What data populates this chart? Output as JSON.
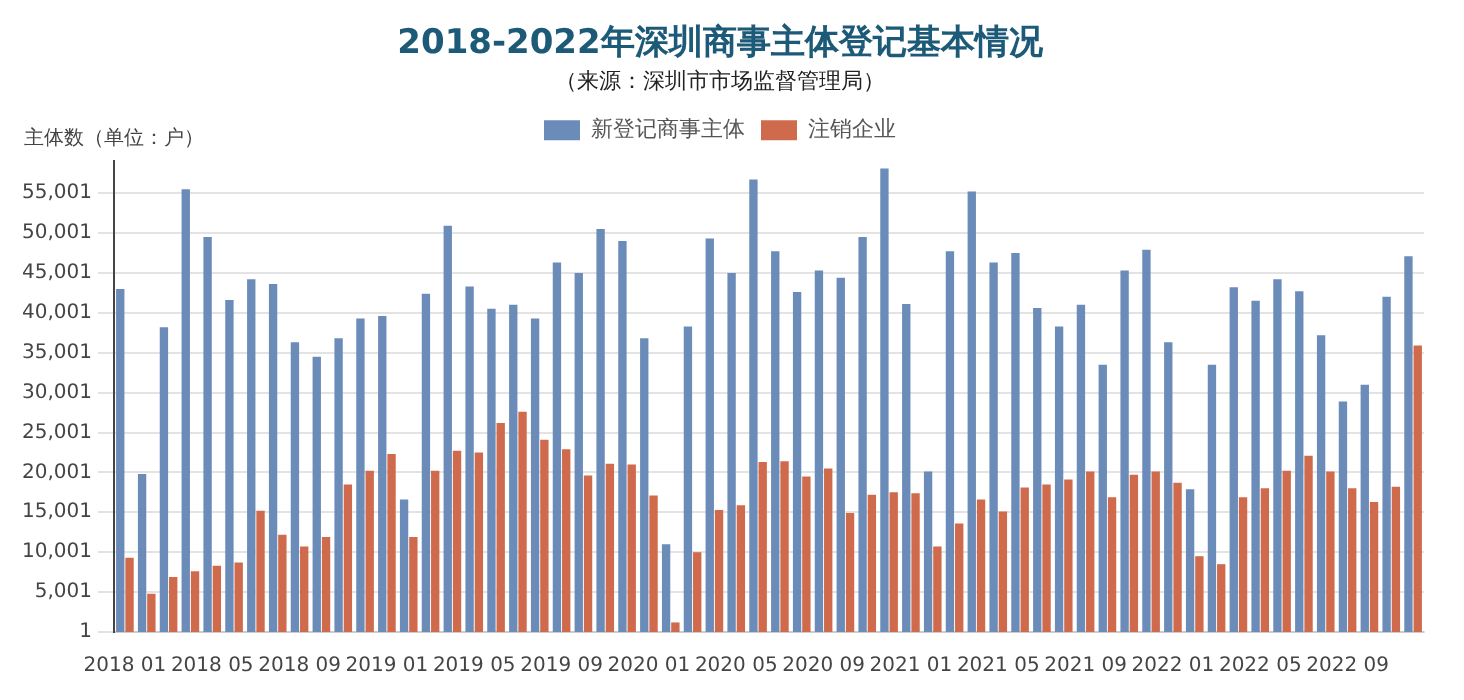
{
  "chart_data": {
    "type": "bar",
    "title": "2018-2022年深圳商事主体登记基本情况",
    "subtitle": "（来源：深圳市市场监督管理局）",
    "ylabel": "主体数（单位：户）",
    "categories": [
      "2018 01",
      null,
      null,
      null,
      "2018 05",
      null,
      null,
      null,
      "2018 09",
      null,
      null,
      null,
      "2019 01",
      null,
      null,
      null,
      "2019 05",
      null,
      null,
      null,
      "2019 09",
      null,
      null,
      null,
      "2020 01",
      null,
      null,
      null,
      "2020 05",
      null,
      null,
      null,
      "2020 09",
      null,
      null,
      null,
      "2021 01",
      null,
      null,
      null,
      "2021 05",
      null,
      null,
      null,
      "2021 09",
      null,
      null,
      null,
      "2022 01",
      null,
      null,
      null,
      "2022 05",
      null,
      null,
      null,
      "2022 09",
      null,
      null,
      null
    ],
    "series": [
      {
        "name": "新登记商事主体",
        "color": "#6b8bb8",
        "values": [
          43000,
          19800,
          38200,
          55500,
          49500,
          41600,
          44200,
          43600,
          36300,
          34500,
          36800,
          39300,
          39600,
          16600,
          42400,
          50900,
          43300,
          40500,
          41000,
          39300,
          46300,
          45000,
          50500,
          49000,
          36800,
          11000,
          38300,
          49300,
          45000,
          56700,
          47700,
          42600,
          45300,
          44400,
          49500,
          58100,
          41100,
          20100,
          47700,
          55200,
          46300,
          47500,
          40600,
          38300,
          41000,
          33500,
          45300,
          47900,
          36300,
          17900,
          33500,
          43200,
          41500,
          44200,
          42700,
          37200,
          28900,
          31000,
          42000,
          47100
        ]
      },
      {
        "name": "注销企业",
        "color": "#cf6b4c",
        "values": [
          9300,
          4800,
          6900,
          7600,
          8300,
          8700,
          15200,
          12200,
          10700,
          11900,
          18500,
          20200,
          22300,
          11900,
          20200,
          22700,
          22500,
          26200,
          27600,
          24100,
          22900,
          19600,
          21100,
          21000,
          17100,
          1200,
          10000,
          15300,
          15900,
          21300,
          21400,
          19500,
          20500,
          14900,
          17200,
          17500,
          17400,
          10700,
          13600,
          16600,
          15100,
          18100,
          18500,
          19100,
          20100,
          16900,
          19700,
          20100,
          18700,
          9500,
          8500,
          16900,
          18000,
          20200,
          22100,
          20100,
          18000,
          16300,
          18200,
          35900
        ]
      }
    ],
    "ylim": [
      1,
      59000
    ],
    "yticks": [
      1,
      {
        "value": 5001,
        "label": "5,001"
      },
      {
        "value": 10001,
        "label": "10,001"
      },
      {
        "value": 15001,
        "label": "15,001"
      },
      {
        "value": 20001,
        "label": "20,001"
      },
      {
        "value": 25001,
        "label": "25,001"
      },
      {
        "value": 30001,
        "label": "30,001"
      },
      {
        "value": 35001,
        "label": "35,001"
      },
      {
        "value": 40001,
        "label": "40,001"
      },
      {
        "value": 45001,
        "label": "45,001"
      },
      {
        "value": 50001,
        "label": "50,001"
      },
      {
        "value": 55001,
        "label": "55,001"
      }
    ],
    "grid": "y",
    "legend": "top"
  }
}
